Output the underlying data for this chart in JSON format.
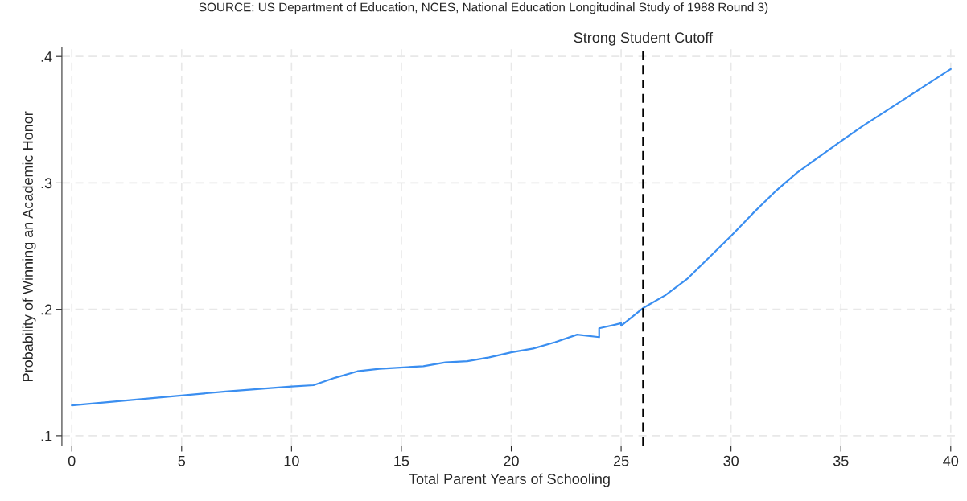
{
  "chart_data": {
    "type": "line",
    "xlabel": "Total Parent Years of Schooling",
    "ylabel": "Probability of Winning an Academic Honor",
    "annotations": [
      "SOURCE: US Department of Education, NCES, National Education Longitudinal Study of 1988 Round 3)"
    ],
    "x": [
      0,
      7,
      10,
      11,
      12,
      13,
      14,
      16,
      17,
      18,
      19,
      20,
      21,
      22,
      23,
      24,
      24,
      25,
      25,
      26,
      27,
      28,
      29,
      30,
      31,
      32,
      33,
      35,
      36,
      40
    ],
    "series": [
      {
        "color": "#3a8ef0",
        "values": [
          0.124,
          0.135,
          0.139,
          0.14,
          0.146,
          0.151,
          0.153,
          0.155,
          0.158,
          0.159,
          0.162,
          0.166,
          0.169,
          0.174,
          0.18,
          0.178,
          0.185,
          0.189,
          0.187,
          0.201,
          0.211,
          0.224,
          0.241,
          0.258,
          0.276,
          0.293,
          0.308,
          0.333,
          0.345,
          0.39
        ]
      }
    ],
    "xlim": [
      -0.45,
      40.3
    ],
    "ylim": [
      0.092,
      0.407
    ],
    "xticks": [
      0,
      5,
      10,
      15,
      20,
      25,
      30,
      35,
      40
    ],
    "yticks": [
      {
        "value": 0.1,
        "label": ".1"
      },
      {
        "value": 0.2,
        "label": ".2"
      },
      {
        "value": 0.3,
        "label": ".3"
      },
      {
        "value": 0.4,
        "label": ".4"
      }
    ],
    "ref_lines": [
      {
        "axis": "x",
        "value": 26,
        "label": "Strong Student Cutoff",
        "color": "#000000",
        "line_style": "dashed"
      }
    ],
    "grid": true,
    "marker": "none",
    "line_style": "solid"
  }
}
